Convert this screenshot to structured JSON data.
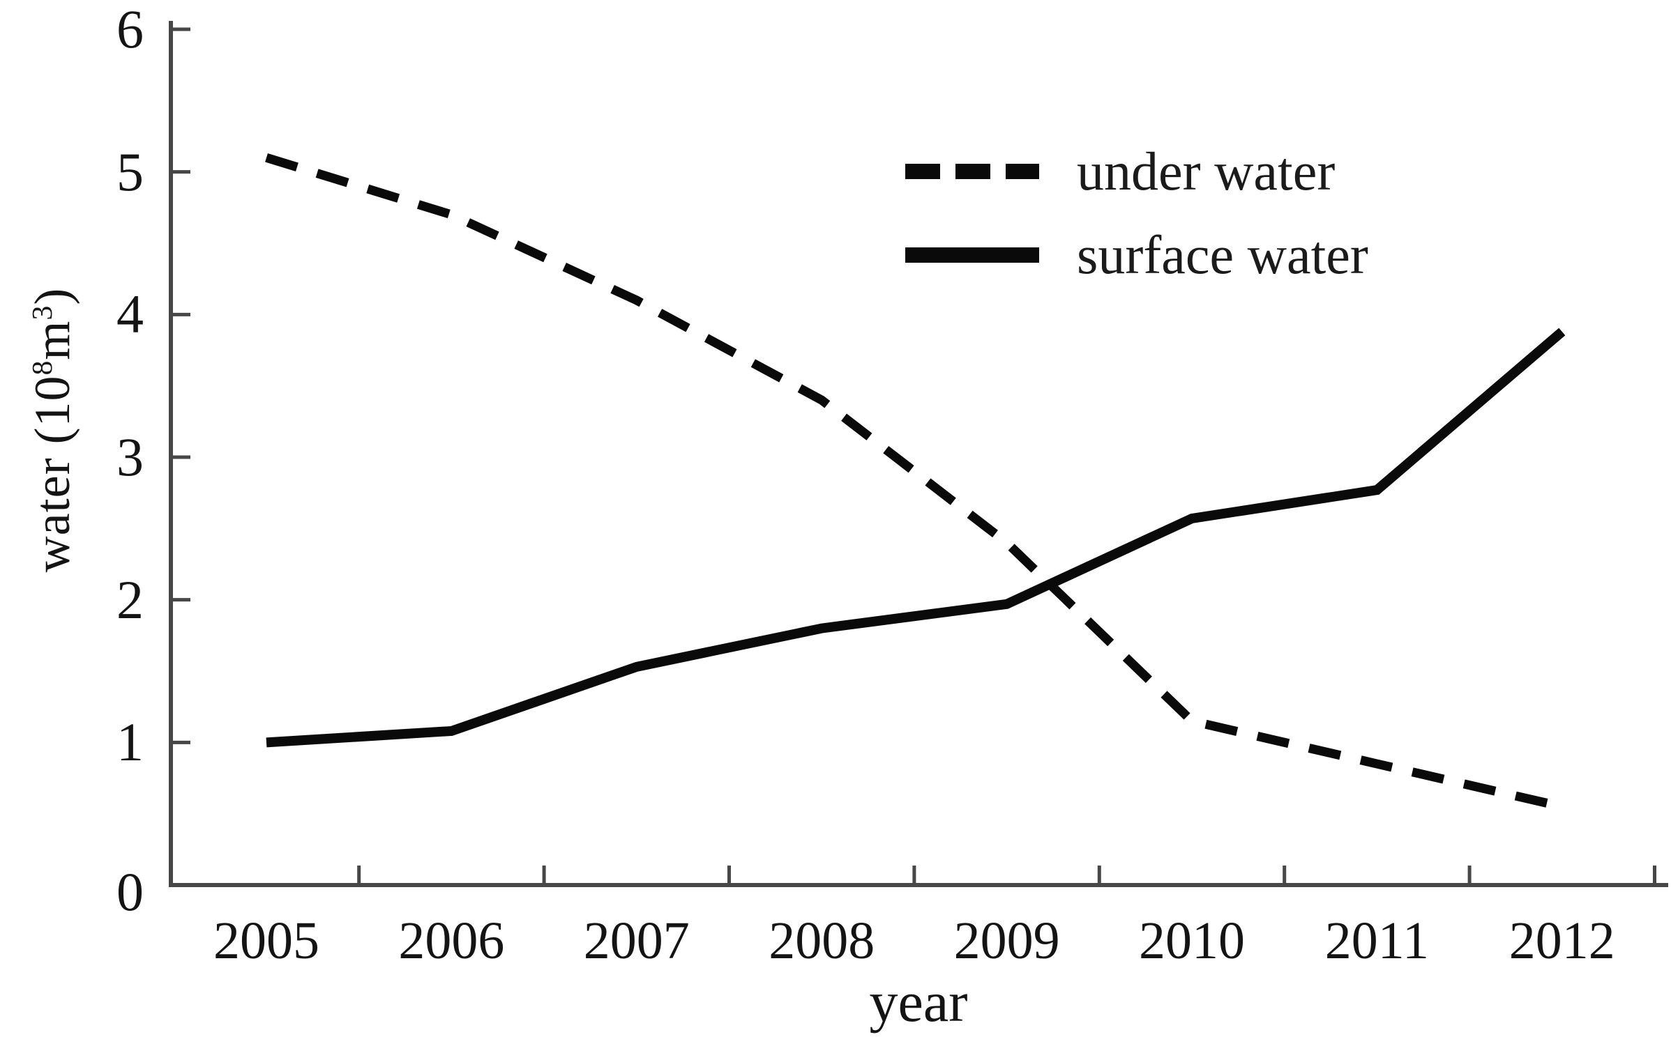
{
  "page": {
    "background": "#ffffff",
    "description": "scanned black-and-white line chart of water usage by year"
  },
  "chart_data": {
    "type": "line",
    "title": "",
    "xlabel": "year",
    "ylabel": "water (10⁸m³)",
    "ylabel_parts": [
      {
        "text": "water (10",
        "sup": false
      },
      {
        "text": "8",
        "sup": true
      },
      {
        "text": "m",
        "sup": false
      },
      {
        "text": "3",
        "sup": true
      },
      {
        "text": ")",
        "sup": false
      }
    ],
    "x_categories": [
      "2005",
      "2006",
      "2007",
      "2008",
      "2009",
      "2010",
      "2011",
      "2012"
    ],
    "yticks": [
      0,
      1,
      2,
      3,
      4,
      5,
      6
    ],
    "ylim": [
      0,
      6
    ],
    "grid": false,
    "legend_position": "inside-top-right",
    "series": [
      {
        "name": "under water",
        "style": "dashed",
        "color": "#0a0a0a",
        "values": [
          5.1,
          4.7,
          4.1,
          3.4,
          2.4,
          1.15,
          0.85,
          0.55
        ]
      },
      {
        "name": "surface water",
        "style": "solid",
        "color": "#0a0a0a",
        "values": [
          1.0,
          1.08,
          1.53,
          1.8,
          1.97,
          2.57,
          2.77,
          3.88
        ]
      }
    ],
    "axis_color": "#474747",
    "text_color": "#141414"
  }
}
